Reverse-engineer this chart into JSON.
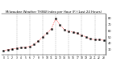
{
  "title": "Milwaukee Weather THSW Index per Hour (F) (Last 24 Hours)",
  "background_color": "#ffffff",
  "plot_bg_color": "#ffffff",
  "line_color": "#ff0000",
  "marker_color": "#000000",
  "grid_color": "#b0b0b0",
  "hours": [
    0,
    1,
    2,
    3,
    4,
    5,
    6,
    7,
    8,
    9,
    10,
    11,
    12,
    13,
    14,
    15,
    16,
    17,
    18,
    19,
    20,
    21,
    22,
    23
  ],
  "values": [
    28,
    30,
    31,
    32,
    33,
    34,
    35,
    38,
    44,
    50,
    57,
    63,
    80,
    69,
    62,
    59,
    58,
    56,
    53,
    50,
    47,
    46,
    46,
    45
  ],
  "ylim_min": 22,
  "ylim_max": 87,
  "yticks": [
    30,
    40,
    50,
    60,
    70,
    80
  ],
  "ytick_labels": [
    "30",
    "40",
    "50",
    "60",
    "70",
    "80"
  ],
  "grid_x_positions": [
    3,
    6,
    9,
    12,
    15,
    18,
    21
  ],
  "figwidth": 1.6,
  "figheight": 0.87,
  "dpi": 100,
  "title_fontsize": 2.8,
  "tick_fontsize": 2.2,
  "ytick_fontsize": 2.5,
  "linewidth": 0.5,
  "markersize": 1.3,
  "grid_linewidth": 0.35
}
